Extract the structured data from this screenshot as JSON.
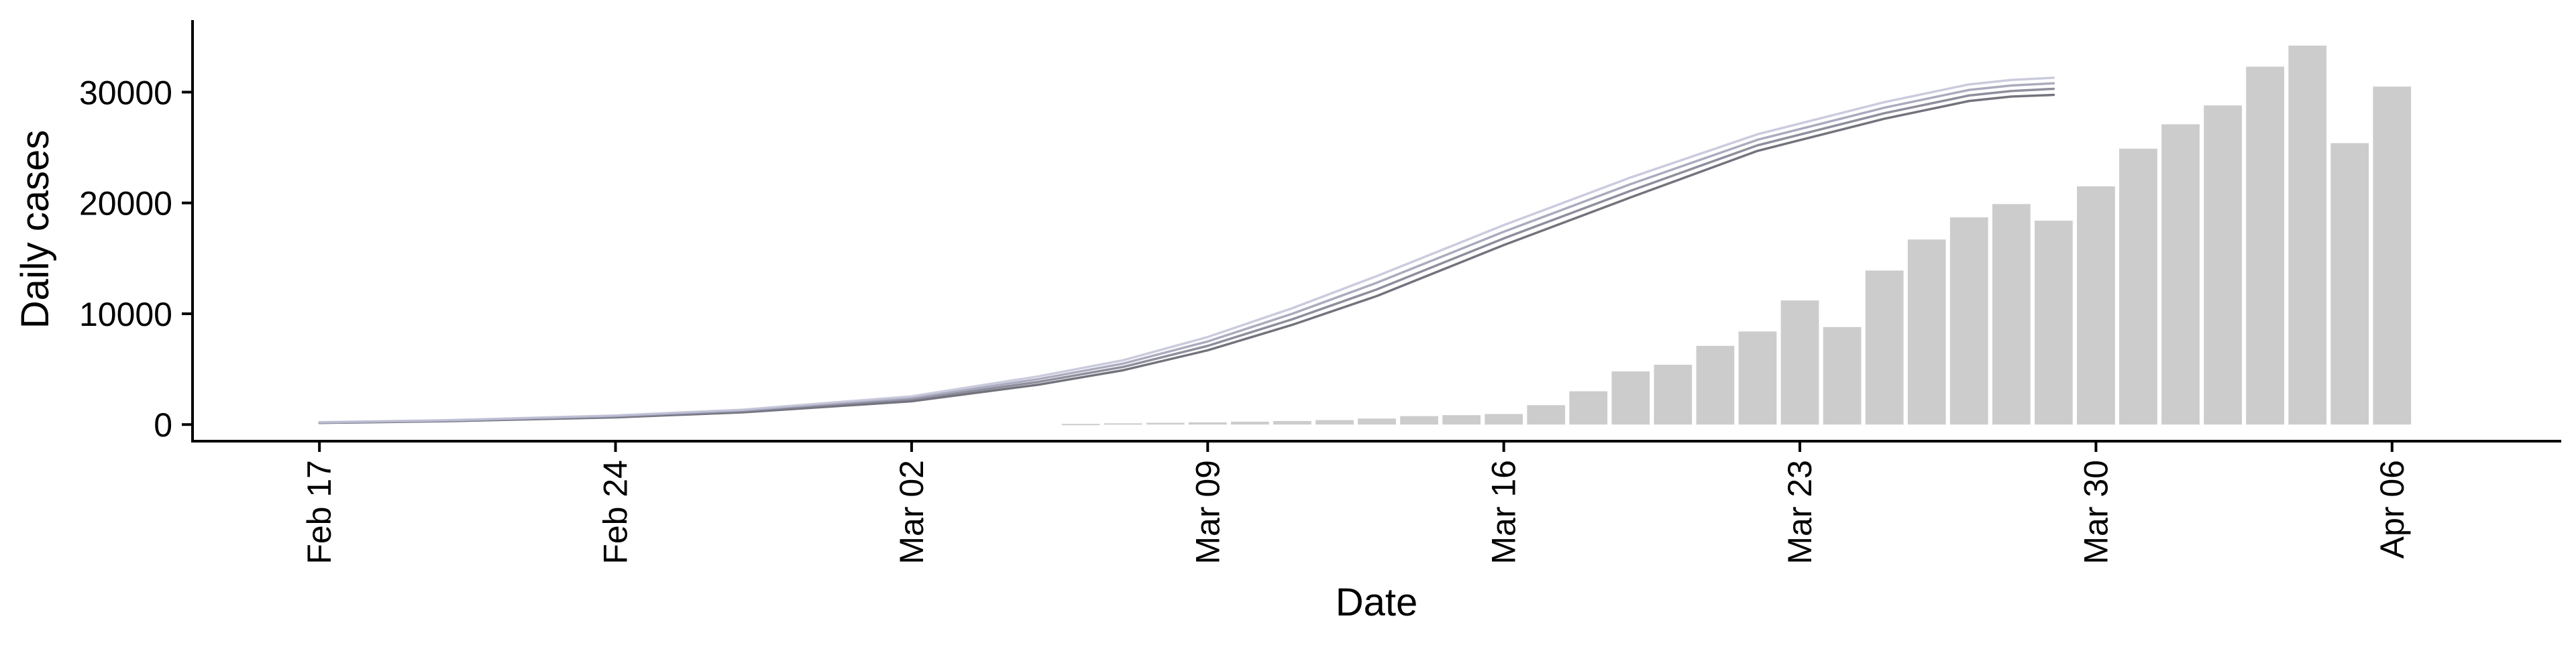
{
  "chart_data": {
    "type": "bar",
    "title": "",
    "xlabel": "Date",
    "ylabel": "Daily cases",
    "x_range": [
      "2020-02-14",
      "2020-04-10"
    ],
    "ylim": [
      -1500,
      36500
    ],
    "grid": false,
    "legend": "none",
    "x_ticks": [
      {
        "date": "2020-02-17",
        "label": "Feb 17"
      },
      {
        "date": "2020-02-24",
        "label": "Feb 24"
      },
      {
        "date": "2020-03-02",
        "label": "Mar 02"
      },
      {
        "date": "2020-03-09",
        "label": "Mar 09"
      },
      {
        "date": "2020-03-16",
        "label": "Mar 16"
      },
      {
        "date": "2020-03-23",
        "label": "Mar 23"
      },
      {
        "date": "2020-03-30",
        "label": "Mar 30"
      },
      {
        "date": "2020-04-06",
        "label": "Apr 06"
      }
    ],
    "y_ticks": [
      {
        "value": 0,
        "label": "0"
      },
      {
        "value": 10000,
        "label": "10000"
      },
      {
        "value": 20000,
        "label": "20000"
      },
      {
        "value": 30000,
        "label": "30000"
      }
    ],
    "bars": {
      "color": "#cccccc",
      "dates": [
        "2020-03-06",
        "2020-03-07",
        "2020-03-08",
        "2020-03-09",
        "2020-03-10",
        "2020-03-11",
        "2020-03-12",
        "2020-03-13",
        "2020-03-14",
        "2020-03-15",
        "2020-03-16",
        "2020-03-17",
        "2020-03-18",
        "2020-03-19",
        "2020-03-20",
        "2020-03-21",
        "2020-03-22",
        "2020-03-23",
        "2020-03-24",
        "2020-03-25",
        "2020-03-26",
        "2020-03-27",
        "2020-03-28",
        "2020-03-29",
        "2020-03-30",
        "2020-03-31",
        "2020-04-01",
        "2020-04-02",
        "2020-04-03",
        "2020-04-04",
        "2020-04-05",
        "2020-04-06",
        "2020-04-07"
      ],
      "values": [
        60,
        110,
        160,
        200,
        260,
        320,
        400,
        540,
        760,
        850,
        950,
        1750,
        3000,
        4800,
        5400,
        7100,
        8400,
        11200,
        8800,
        13900,
        16700,
        18700,
        19900,
        18400,
        21500,
        24900,
        27100,
        28800,
        32300,
        34200,
        25400,
        30500,
        null
      ]
    },
    "series": [
      {
        "color": "#5a5a66",
        "x": [
          "2020-02-17",
          "2020-02-20",
          "2020-02-24",
          "2020-02-27",
          "2020-03-02",
          "2020-03-05",
          "2020-03-07",
          "2020-03-09",
          "2020-03-11",
          "2020-03-13",
          "2020-03-16",
          "2020-03-19",
          "2020-03-22",
          "2020-03-25",
          "2020-03-27",
          "2020-03-28",
          "2020-03-29"
        ],
        "y": [
          150,
          300,
          650,
          1100,
          2100,
          3600,
          4900,
          6700,
          9000,
          11600,
          16200,
          20500,
          24700,
          27600,
          29200,
          29600,
          29750
        ]
      },
      {
        "color": "#7a7a8c",
        "x": [
          "2020-02-17",
          "2020-02-20",
          "2020-02-24",
          "2020-02-27",
          "2020-03-02",
          "2020-03-05",
          "2020-03-07",
          "2020-03-09",
          "2020-03-11",
          "2020-03-13",
          "2020-03-16",
          "2020-03-19",
          "2020-03-22",
          "2020-03-25",
          "2020-03-27",
          "2020-03-28",
          "2020-03-29"
        ],
        "y": [
          170,
          330,
          700,
          1180,
          2250,
          3850,
          5200,
          7100,
          9500,
          12200,
          16800,
          21100,
          25200,
          28100,
          29700,
          30100,
          30300
        ]
      },
      {
        "color": "#9c9cb4",
        "x": [
          "2020-02-17",
          "2020-02-20",
          "2020-02-24",
          "2020-02-27",
          "2020-03-02",
          "2020-03-05",
          "2020-03-07",
          "2020-03-09",
          "2020-03-11",
          "2020-03-13",
          "2020-03-16",
          "2020-03-19",
          "2020-03-22",
          "2020-03-25",
          "2020-03-27",
          "2020-03-28",
          "2020-03-29"
        ],
        "y": [
          190,
          360,
          760,
          1260,
          2400,
          4100,
          5500,
          7500,
          10000,
          12800,
          17400,
          21700,
          25700,
          28600,
          30200,
          30600,
          30800
        ]
      },
      {
        "color": "#c2c2d8",
        "x": [
          "2020-02-17",
          "2020-02-20",
          "2020-02-24",
          "2020-02-27",
          "2020-03-02",
          "2020-03-05",
          "2020-03-07",
          "2020-03-09",
          "2020-03-11",
          "2020-03-13",
          "2020-03-16",
          "2020-03-19",
          "2020-03-22",
          "2020-03-25",
          "2020-03-27",
          "2020-03-28",
          "2020-03-29"
        ],
        "y": [
          210,
          390,
          820,
          1340,
          2550,
          4350,
          5800,
          7900,
          10500,
          13400,
          18000,
          22300,
          26200,
          29100,
          30700,
          31100,
          31300
        ]
      }
    ]
  }
}
